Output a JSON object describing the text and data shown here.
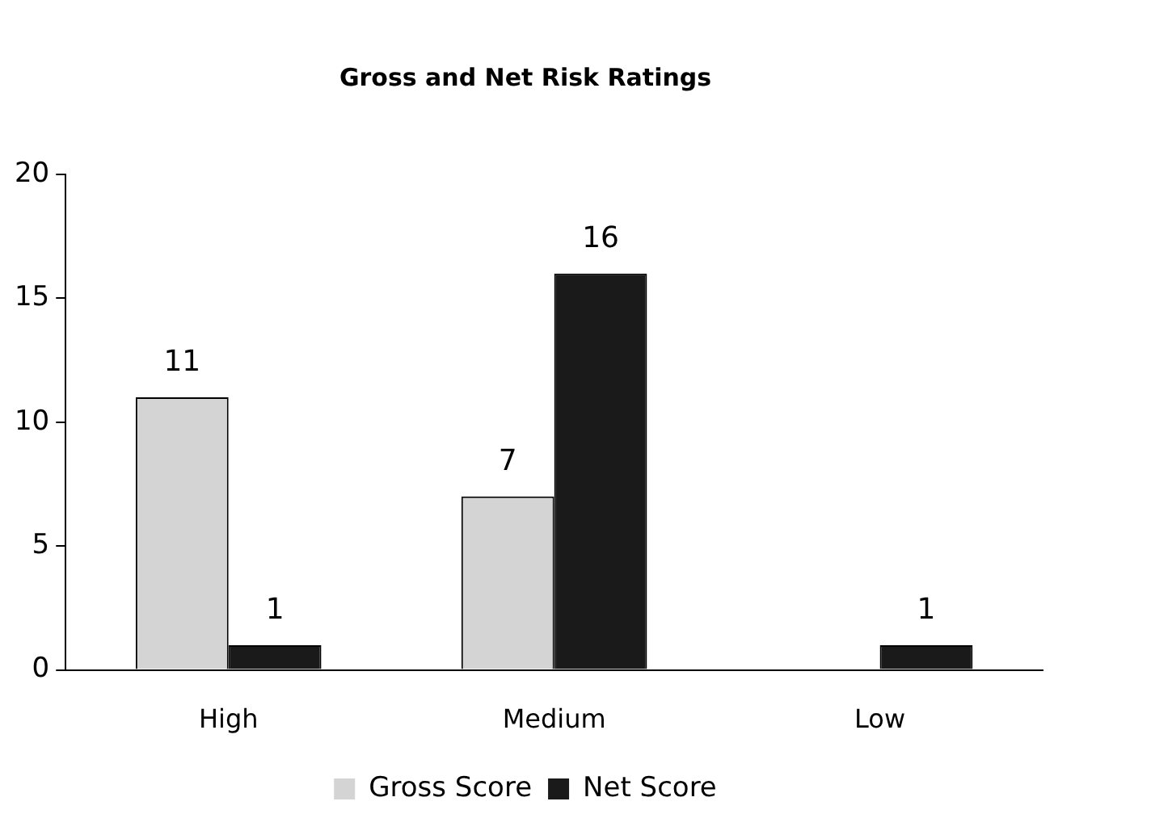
{
  "chart_data": {
    "type": "bar",
    "title": "Gross and Net Risk Ratings",
    "categories": [
      "High",
      "Medium",
      "Low"
    ],
    "series": [
      {
        "name": "Gross Score",
        "color": "#d4d4d4",
        "values": [
          11,
          7,
          0
        ],
        "value_labels": [
          "11",
          "7",
          null
        ]
      },
      {
        "name": "Net Score",
        "color": "#1a1a1a",
        "values": [
          1,
          16,
          1
        ],
        "value_labels": [
          "1",
          "16",
          "1"
        ]
      }
    ],
    "ylim": [
      0,
      20
    ],
    "yticks": [
      0,
      5,
      10,
      15,
      20
    ],
    "grid": false,
    "legend": "bottom"
  }
}
